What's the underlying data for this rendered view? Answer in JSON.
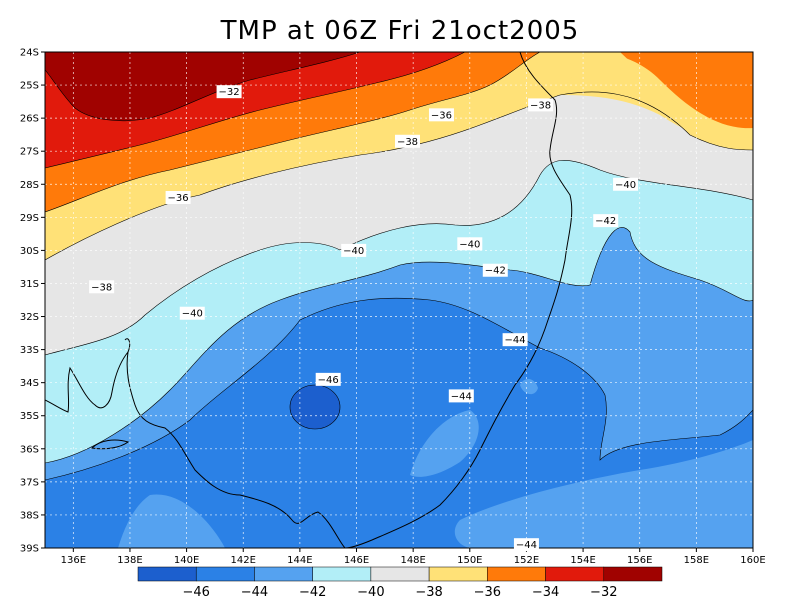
{
  "title": "TMP at 06Z Fri 21oct2005",
  "colors": {
    "c_le46": "#1c5fce",
    "c_46_44": "#2b81e6",
    "c_44_42": "#55a2f0",
    "c_42_40": "#b2eef7",
    "c_40_38": "#e6e6e6",
    "c_38_36": "#ffe177",
    "c_36_34": "#ff7a0a",
    "c_34_32": "#e11a0c",
    "c_ge32": "#a00200"
  },
  "lat_labels": [
    "24S",
    "25S",
    "26S",
    "27S",
    "28S",
    "29S",
    "30S",
    "31S",
    "32S",
    "33S",
    "34S",
    "35S",
    "36S",
    "37S",
    "38S",
    "39S"
  ],
  "lon_labels": [
    "136E",
    "138E",
    "140E",
    "142E",
    "144E",
    "146E",
    "148E",
    "150E",
    "152E",
    "154E",
    "156E",
    "158E",
    "160E"
  ],
  "contour_labels": [
    {
      "text": "-32",
      "lon": 141.5,
      "lat": 25.2
    },
    {
      "text": "-36",
      "lon": 149.0,
      "lat": 25.9
    },
    {
      "text": "-38",
      "lon": 147.8,
      "lat": 26.7
    },
    {
      "text": "-38",
      "lon": 152.5,
      "lat": 25.6
    },
    {
      "text": "-36",
      "lon": 139.7,
      "lat": 28.4
    },
    {
      "text": "-40",
      "lon": 155.5,
      "lat": 28.0
    },
    {
      "text": "-42",
      "lon": 154.8,
      "lat": 29.1
    },
    {
      "text": "-40",
      "lon": 145.9,
      "lat": 30.0
    },
    {
      "text": "-40",
      "lon": 150.0,
      "lat": 29.8
    },
    {
      "text": "-42",
      "lon": 150.9,
      "lat": 30.6
    },
    {
      "text": "-38",
      "lon": 137.0,
      "lat": 31.1
    },
    {
      "text": "-40",
      "lon": 140.2,
      "lat": 31.9
    },
    {
      "text": "-44",
      "lon": 151.6,
      "lat": 32.7
    },
    {
      "text": "-46",
      "lon": 145.0,
      "lat": 33.9
    },
    {
      "text": "-44",
      "lon": 149.7,
      "lat": 34.4
    },
    {
      "text": "-44",
      "lon": 152.0,
      "lat": 38.9
    }
  ],
  "colorbar": {
    "labels": [
      "-46",
      "-44",
      "-42",
      "-40",
      "-38",
      "-36",
      "-34",
      "-32"
    ]
  }
}
